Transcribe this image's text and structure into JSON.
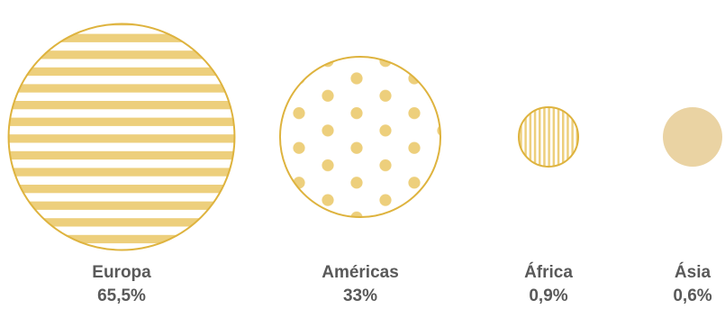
{
  "chart_data": {
    "type": "bubble",
    "title": "",
    "categories": [
      "Europa",
      "Américas",
      "África",
      "Ásia"
    ],
    "values": [
      65.5,
      33,
      0.9,
      0.6
    ],
    "value_labels": [
      "65,5%",
      "33%",
      "0,9%",
      "0,6%"
    ],
    "patterns": [
      "horizontal-stripes",
      "dots",
      "vertical-stripes",
      "solid"
    ],
    "legend": "none"
  },
  "colors": {
    "stroke": "#DEB33E",
    "fill_stripe": "#EDCF7C",
    "fill_dot": "#EDCF7C",
    "fill_vertical": "#EDCF7C",
    "fill_solid": "#EAD3A3",
    "label": "#595959"
  }
}
